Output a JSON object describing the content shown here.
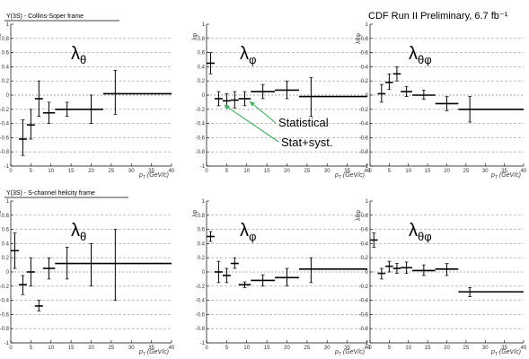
{
  "header": {
    "title_top": "Υ(3S) - Collins-Soper frame",
    "title_bottom": "Υ(3S) - S-channel helicity frame",
    "run_label": "CDF Run II Preliminary, 6.7 fb⁻¹"
  },
  "annotations": {
    "statistical": "Statistical",
    "stat_syst": "Stat+syst."
  },
  "colors": {
    "arrow": "#3cb35a",
    "grid": "#9a9a9a",
    "axis": "#000000"
  },
  "chart_data": [
    {
      "type": "scatter",
      "panel": "top-left",
      "big_label": "λ",
      "big_sub": "θ",
      "ylabel": "λθ",
      "xlabel_main": "p",
      "xlabel_sub": "T",
      "xlabel_unit": "(GeV/c)",
      "xlim": [
        0,
        40
      ],
      "ylim": [
        -1,
        1
      ],
      "xticks": [
        0,
        5,
        10,
        15,
        20,
        25,
        30,
        35,
        40
      ],
      "yticks": [
        -1,
        -0.8,
        -0.6,
        -0.4,
        -0.2,
        0,
        0.2,
        0.4,
        0.6,
        0.8,
        1
      ],
      "ytick_labels": [
        "-1",
        "-0.8",
        "-0.6",
        "-0.4",
        "-0.2",
        "0",
        "0.2",
        "0.4",
        "0.6",
        "0.8",
        "1"
      ],
      "points": [
        {
          "x": 3,
          "xlo": 2,
          "xhi": 4,
          "y": -0.62,
          "lo": -0.85,
          "hi": -0.35
        },
        {
          "x": 5,
          "xlo": 4,
          "xhi": 6,
          "y": -0.42,
          "lo": -0.62,
          "hi": -0.2
        },
        {
          "x": 7,
          "xlo": 6,
          "xhi": 8,
          "y": -0.05,
          "lo": -0.3,
          "hi": 0.2
        },
        {
          "x": 9.5,
          "xlo": 8,
          "xhi": 11,
          "y": -0.25,
          "lo": -0.4,
          "hi": -0.1
        },
        {
          "x": 14,
          "xlo": 11,
          "xhi": 17,
          "y": -0.2,
          "lo": -0.3,
          "hi": -0.1
        },
        {
          "x": 20,
          "xlo": 17,
          "xhi": 23,
          "y": -0.2,
          "lo": -0.4,
          "hi": 0
        },
        {
          "x": 26,
          "xlo": 23,
          "xhi": 40,
          "y": 0.02,
          "lo": -0.27,
          "hi": 0.35
        }
      ]
    },
    {
      "type": "scatter",
      "panel": "top-middle",
      "big_label": "λ",
      "big_sub": "φ",
      "ylabel": "λφ",
      "xlabel_main": "p",
      "xlabel_sub": "T",
      "xlabel_unit": "(GeV/c)",
      "xlim": [
        0,
        40
      ],
      "ylim": [
        -1,
        1
      ],
      "xticks": [
        0,
        5,
        10,
        15,
        20,
        25,
        30,
        35,
        40
      ],
      "yticks": [
        -1,
        -0.8,
        -0.6,
        -0.4,
        -0.2,
        0,
        0.2,
        0.4,
        0.6,
        0.8,
        1
      ],
      "ytick_labels": [
        "-1",
        "-0.8",
        "-0.6",
        "-0.4",
        "-0.2",
        "0",
        "0.2",
        "0.4",
        "0.6",
        "0.8",
        "1"
      ],
      "points": [
        {
          "x": 1,
          "xlo": 0,
          "xhi": 2,
          "y": 0.45,
          "lo": 0.3,
          "hi": 0.6
        },
        {
          "x": 3,
          "xlo": 2,
          "xhi": 4,
          "y": -0.05,
          "lo": -0.15,
          "hi": 0.05
        },
        {
          "x": 5,
          "xlo": 4,
          "xhi": 6,
          "y": -0.08,
          "lo": -0.17,
          "hi": 0.02
        },
        {
          "x": 7,
          "xlo": 6,
          "xhi": 8,
          "y": -0.07,
          "lo": -0.18,
          "hi": 0.05
        },
        {
          "x": 9.5,
          "xlo": 8,
          "xhi": 11,
          "y": -0.05,
          "lo": -0.15,
          "hi": 0.05
        },
        {
          "x": 14,
          "xlo": 11,
          "xhi": 17,
          "y": 0.05,
          "lo": -0.05,
          "hi": 0.15
        },
        {
          "x": 20,
          "xlo": 17,
          "xhi": 23,
          "y": 0.07,
          "lo": -0.05,
          "hi": 0.2
        },
        {
          "x": 26,
          "xlo": 23,
          "xhi": 40,
          "y": -0.02,
          "lo": -0.3,
          "hi": 0.25
        }
      ]
    },
    {
      "type": "scatter",
      "panel": "top-right",
      "big_label": "λ",
      "big_sub": "θφ",
      "ylabel": "λθφ",
      "xlabel_main": "p",
      "xlabel_sub": "T",
      "xlabel_unit": "(GeV/c)",
      "xlim": [
        0,
        40
      ],
      "ylim": [
        -1,
        1
      ],
      "xticks": [
        0,
        5,
        10,
        15,
        20,
        25,
        30,
        35,
        40
      ],
      "yticks": [
        -1,
        -0.8,
        -0.6,
        -0.4,
        -0.2,
        0,
        0.2,
        0.4,
        0.6,
        0.8,
        1
      ],
      "ytick_labels": [
        "-1",
        "-0.8",
        "-0.6",
        "-0.4",
        "-0.2",
        "0",
        "0.2",
        "0.4",
        "0.6",
        "0.8",
        "1"
      ],
      "points": [
        {
          "x": 3,
          "xlo": 2,
          "xhi": 4,
          "y": 0.02,
          "lo": -0.1,
          "hi": 0.15
        },
        {
          "x": 5,
          "xlo": 4,
          "xhi": 6,
          "y": 0.18,
          "lo": 0.08,
          "hi": 0.3
        },
        {
          "x": 7,
          "xlo": 6,
          "xhi": 8,
          "y": 0.3,
          "lo": 0.2,
          "hi": 0.4
        },
        {
          "x": 9.5,
          "xlo": 8,
          "xhi": 11,
          "y": 0.05,
          "lo": -0.02,
          "hi": 0.12
        },
        {
          "x": 14,
          "xlo": 11,
          "xhi": 17,
          "y": 0,
          "lo": -0.06,
          "hi": 0.07
        },
        {
          "x": 20,
          "xlo": 17,
          "xhi": 23,
          "y": -0.12,
          "lo": -0.22,
          "hi": -0.02
        },
        {
          "x": 26,
          "xlo": 23,
          "xhi": 40,
          "y": -0.2,
          "lo": -0.38,
          "hi": -0.02
        }
      ]
    },
    {
      "type": "scatter",
      "panel": "bottom-left",
      "big_label": "λ",
      "big_sub": "θ",
      "ylabel": "λθ",
      "xlabel_main": "p",
      "xlabel_sub": "T",
      "xlabel_unit": "(GeV/c)",
      "xlim": [
        0,
        40
      ],
      "ylim": [
        -1,
        1
      ],
      "xticks": [
        0,
        5,
        10,
        15,
        20,
        25,
        30,
        35,
        40
      ],
      "yticks": [
        -1,
        -0.8,
        -0.6,
        -0.4,
        -0.2,
        0,
        0.2,
        0.4,
        0.6,
        0.8,
        1
      ],
      "ytick_labels": [
        "-1",
        "-0.8",
        "-0.6",
        "-0.4",
        "-0.2",
        "0",
        "0.2",
        "0.4",
        "0.6",
        "0.8",
        "1"
      ],
      "points": [
        {
          "x": 1,
          "xlo": 0,
          "xhi": 2,
          "y": 0.3,
          "lo": 0.05,
          "hi": 0.55
        },
        {
          "x": 3,
          "xlo": 2,
          "xhi": 4,
          "y": -0.18,
          "lo": -0.32,
          "hi": -0.05
        },
        {
          "x": 5,
          "xlo": 4,
          "xhi": 6,
          "y": 0,
          "lo": -0.2,
          "hi": 0.2
        },
        {
          "x": 7,
          "xlo": 6,
          "xhi": 8,
          "y": -0.48,
          "lo": -0.55,
          "hi": -0.4
        },
        {
          "x": 9.5,
          "xlo": 8,
          "xhi": 11,
          "y": 0.05,
          "lo": -0.1,
          "hi": 0.2
        },
        {
          "x": 14,
          "xlo": 11,
          "xhi": 17,
          "y": 0.12,
          "lo": -0.1,
          "hi": 0.35
        },
        {
          "x": 20,
          "xlo": 17,
          "xhi": 23,
          "y": 0.12,
          "lo": -0.2,
          "hi": 0.4
        },
        {
          "x": 26,
          "xlo": 23,
          "xhi": 40,
          "y": 0.12,
          "lo": -0.4,
          "hi": 0.6
        }
      ]
    },
    {
      "type": "scatter",
      "panel": "bottom-middle",
      "big_label": "λ",
      "big_sub": "φ",
      "ylabel": "λφ",
      "xlabel_main": "p",
      "xlabel_sub": "T",
      "xlabel_unit": "(GeV/c)",
      "xlim": [
        0,
        40
      ],
      "ylim": [
        -1,
        1
      ],
      "xticks": [
        0,
        5,
        10,
        15,
        20,
        25,
        30,
        35,
        40
      ],
      "yticks": [
        -1,
        -0.8,
        -0.6,
        -0.4,
        -0.2,
        0,
        0.2,
        0.4,
        0.6,
        0.8,
        1
      ],
      "ytick_labels": [
        "-1",
        "-0.8",
        "-0.6",
        "-0.4",
        "-0.2",
        "0",
        "0.2",
        "0.4",
        "0.6",
        "0.8",
        "1"
      ],
      "points": [
        {
          "x": 1,
          "xlo": 0,
          "xhi": 2,
          "y": 0.5,
          "lo": 0.43,
          "hi": 0.57
        },
        {
          "x": 3,
          "xlo": 2,
          "xhi": 4,
          "y": 0,
          "lo": -0.15,
          "hi": 0.15
        },
        {
          "x": 5,
          "xlo": 4,
          "xhi": 6,
          "y": -0.05,
          "lo": -0.15,
          "hi": 0.05
        },
        {
          "x": 7,
          "xlo": 6,
          "xhi": 8,
          "y": 0.12,
          "lo": 0.05,
          "hi": 0.2
        },
        {
          "x": 9.5,
          "xlo": 8,
          "xhi": 11,
          "y": -0.18,
          "lo": -0.22,
          "hi": -0.14
        },
        {
          "x": 14,
          "xlo": 11,
          "xhi": 17,
          "y": -0.12,
          "lo": -0.2,
          "hi": -0.04
        },
        {
          "x": 20,
          "xlo": 17,
          "xhi": 23,
          "y": -0.08,
          "lo": -0.2,
          "hi": 0.05
        },
        {
          "x": 26,
          "xlo": 23,
          "xhi": 40,
          "y": 0.04,
          "lo": -0.15,
          "hi": 0.2
        }
      ]
    },
    {
      "type": "scatter",
      "panel": "bottom-right",
      "big_label": "λ",
      "big_sub": "θφ",
      "ylabel": "λθφ",
      "xlabel_main": "p",
      "xlabel_sub": "T",
      "xlabel_unit": "(GeV/c)",
      "xlim": [
        0,
        40
      ],
      "ylim": [
        -1,
        1
      ],
      "xticks": [
        0,
        5,
        10,
        15,
        20,
        25,
        30,
        35,
        40
      ],
      "yticks": [
        -1,
        -0.8,
        -0.6,
        -0.4,
        -0.2,
        0,
        0.2,
        0.4,
        0.6,
        0.8,
        1
      ],
      "ytick_labels": [
        "-1",
        "-0.8",
        "-0.6",
        "-0.4",
        "-0.2",
        "0",
        "0.2",
        "0.4",
        "0.6",
        "0.8",
        "1"
      ],
      "points": [
        {
          "x": 1,
          "xlo": 0,
          "xhi": 2,
          "y": 0.45,
          "lo": 0.35,
          "hi": 0.55
        },
        {
          "x": 3,
          "xlo": 2,
          "xhi": 4,
          "y": -0.02,
          "lo": -0.1,
          "hi": 0.05
        },
        {
          "x": 5,
          "xlo": 4,
          "xhi": 6,
          "y": 0.08,
          "lo": 0,
          "hi": 0.15
        },
        {
          "x": 7,
          "xlo": 6,
          "xhi": 8,
          "y": 0.05,
          "lo": -0.02,
          "hi": 0.12
        },
        {
          "x": 9.5,
          "xlo": 8,
          "xhi": 11,
          "y": 0.06,
          "lo": -0.02,
          "hi": 0.14
        },
        {
          "x": 14,
          "xlo": 11,
          "xhi": 17,
          "y": 0.02,
          "lo": -0.05,
          "hi": 0.1
        },
        {
          "x": 20,
          "xlo": 17,
          "xhi": 23,
          "y": 0.04,
          "lo": -0.05,
          "hi": 0.12
        },
        {
          "x": 26,
          "xlo": 23,
          "xhi": 40,
          "y": -0.28,
          "lo": -0.35,
          "hi": -0.22
        }
      ]
    }
  ]
}
